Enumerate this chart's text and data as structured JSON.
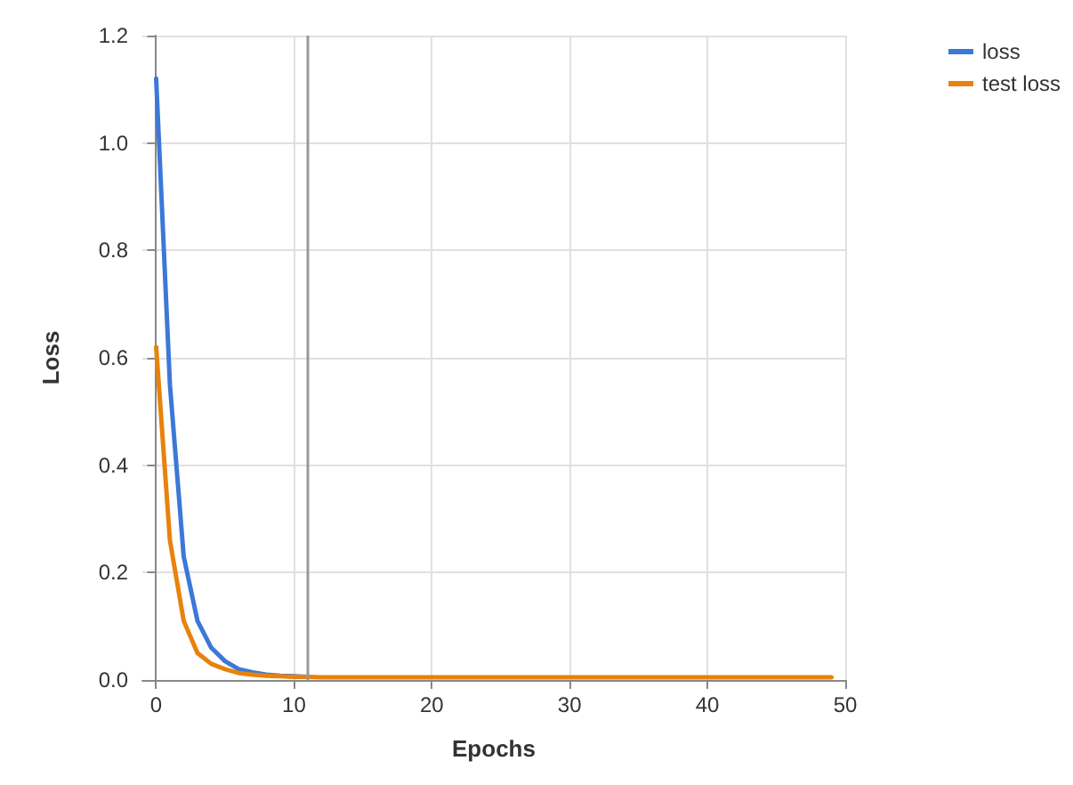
{
  "chart_data": {
    "type": "line",
    "xlabel": "Epochs",
    "ylabel": "Loss",
    "x": [
      0,
      1,
      2,
      3,
      4,
      5,
      6,
      7,
      8,
      9,
      10,
      11,
      12,
      13,
      14,
      15,
      16,
      17,
      18,
      19,
      20,
      21,
      22,
      23,
      24,
      25,
      26,
      27,
      28,
      29,
      30,
      31,
      32,
      33,
      34,
      35,
      36,
      37,
      38,
      39,
      40,
      41,
      42,
      43,
      44,
      45,
      46,
      47,
      48,
      49
    ],
    "series": [
      {
        "name": "loss",
        "color": "#3c78d8",
        "values": [
          1.12,
          0.55,
          0.23,
          0.11,
          0.06,
          0.035,
          0.02,
          0.014,
          0.01,
          0.008,
          0.007,
          0.006,
          null,
          null,
          null,
          null,
          null,
          null,
          null,
          null,
          null,
          null,
          null,
          null,
          null,
          null,
          null,
          null,
          null,
          null,
          null,
          null,
          null,
          null,
          null,
          null,
          null,
          null,
          null,
          null,
          null,
          null,
          null,
          null,
          null,
          null,
          null,
          null,
          null,
          null
        ]
      },
      {
        "name": "test loss",
        "color": "#e8820c",
        "values": [
          0.62,
          0.26,
          0.11,
          0.05,
          0.03,
          0.02,
          0.013,
          0.01,
          0.008,
          0.007,
          0.006,
          0.006,
          0.005,
          0.005,
          0.005,
          0.005,
          0.005,
          0.005,
          0.005,
          0.005,
          0.005,
          0.005,
          0.005,
          0.005,
          0.005,
          0.005,
          0.005,
          0.005,
          0.005,
          0.005,
          0.005,
          0.005,
          0.005,
          0.005,
          0.005,
          0.005,
          0.005,
          0.005,
          0.005,
          0.005,
          0.005,
          0.005,
          0.005,
          0.005,
          0.005,
          0.005,
          0.005,
          0.005,
          0.005,
          0.005
        ]
      }
    ],
    "xlim": [
      -1,
      50
    ],
    "xticks": [
      0,
      10,
      20,
      30,
      40,
      50
    ],
    "ylim": [
      0,
      1.2
    ],
    "yticks": [
      {
        "value": 0,
        "label": "0.0"
      },
      0.2,
      0.4,
      0.6,
      0.8,
      {
        "value": 1,
        "label": "1.0"
      },
      1.2
    ],
    "ref_lines": [
      {
        "axis": "x",
        "value": 11,
        "color": "#999999"
      }
    ],
    "grid": true,
    "legend": "top right",
    "marker": "none",
    "line_style": "solid"
  }
}
